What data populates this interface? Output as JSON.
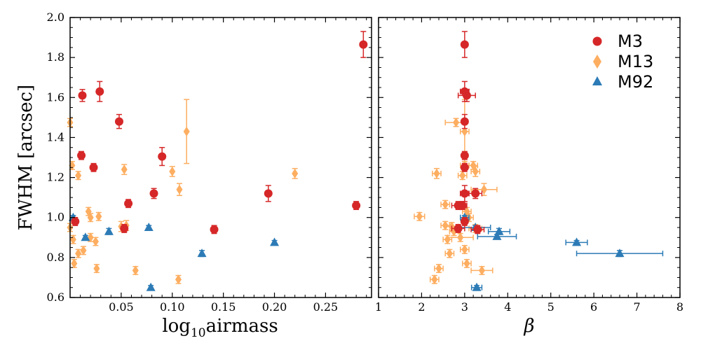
{
  "chart_data": [
    {
      "type": "scatter",
      "title": "",
      "xlabel_main": "log",
      "xlabel_sub": "10",
      "xlabel_rest": "airmass",
      "ylabel": "FWHM [arcsec]",
      "xlim": [
        0.0,
        0.295
      ],
      "ylim": [
        0.6,
        2.0
      ],
      "xticks": [
        0.05,
        0.1,
        0.15,
        0.2,
        0.25
      ],
      "xtick_labels": [
        "0.05",
        "0.10",
        "0.15",
        "0.20",
        "0.25"
      ],
      "yticks": [
        0.6,
        0.8,
        1.0,
        1.2,
        1.4,
        1.6,
        1.8,
        2.0
      ],
      "ytick_labels": [
        "0.6",
        "0.8",
        "1.0",
        "1.2",
        "1.4",
        "1.6",
        "1.8",
        "2.0"
      ],
      "series": [
        {
          "name": "M3",
          "color": "#d62728",
          "marker": "circle",
          "points": [
            {
              "x": 0.012,
              "y": 1.61,
              "yerr": 0.03
            },
            {
              "x": 0.029,
              "y": 1.63,
              "yerr": 0.05
            },
            {
              "x": 0.048,
              "y": 1.48,
              "yerr": 0.035
            },
            {
              "x": 0.011,
              "y": 1.31,
              "yerr": 0.02
            },
            {
              "x": 0.023,
              "y": 1.25,
              "yerr": 0.02
            },
            {
              "x": 0.09,
              "y": 1.305,
              "yerr": 0.045
            },
            {
              "x": 0.082,
              "y": 1.12,
              "yerr": 0.025
            },
            {
              "x": 0.057,
              "y": 1.07,
              "yerr": 0.02
            },
            {
              "x": 0.194,
              "y": 1.12,
              "yerr": 0.04
            },
            {
              "x": 0.28,
              "y": 1.06,
              "yerr": 0.02
            },
            {
              "x": 0.287,
              "y": 1.865,
              "yerr": 0.065
            },
            {
              "x": 0.005,
              "y": 0.98,
              "yerr": 0.02
            },
            {
              "x": 0.053,
              "y": 0.945,
              "yerr": 0.02
            },
            {
              "x": 0.141,
              "y": 0.94,
              "yerr": 0.02
            }
          ]
        },
        {
          "name": "M13",
          "color": "#fdae61",
          "marker": "diamond",
          "points": [
            {
              "x": 0.0,
              "y": 1.475,
              "yerr": 0.02
            },
            {
              "x": 0.002,
              "y": 1.26,
              "yerr": 0.02
            },
            {
              "x": 0.008,
              "y": 1.21,
              "yerr": 0.02
            },
            {
              "x": 0.053,
              "y": 1.24,
              "yerr": 0.025
            },
            {
              "x": 0.1,
              "y": 1.23,
              "yerr": 0.025
            },
            {
              "x": 0.107,
              "y": 1.14,
              "yerr": 0.03
            },
            {
              "x": 0.114,
              "y": 1.43,
              "yerr": 0.16
            },
            {
              "x": 0.22,
              "y": 1.22,
              "yerr": 0.025
            },
            {
              "x": 0.0,
              "y": 0.95,
              "yerr": 0.02
            },
            {
              "x": 0.003,
              "y": 0.89,
              "yerr": 0.02
            },
            {
              "x": 0.004,
              "y": 0.77,
              "yerr": 0.02
            },
            {
              "x": 0.008,
              "y": 0.82,
              "yerr": 0.02
            },
            {
              "x": 0.013,
              "y": 0.835,
              "yerr": 0.02
            },
            {
              "x": 0.018,
              "y": 1.03,
              "yerr": 0.02
            },
            {
              "x": 0.02,
              "y": 1.0,
              "yerr": 0.02
            },
            {
              "x": 0.02,
              "y": 0.9,
              "yerr": 0.02
            },
            {
              "x": 0.025,
              "y": 0.88,
              "yerr": 0.02
            },
            {
              "x": 0.028,
              "y": 1.005,
              "yerr": 0.02
            },
            {
              "x": 0.026,
              "y": 0.745,
              "yerr": 0.02
            },
            {
              "x": 0.05,
              "y": 0.955,
              "yerr": 0.025
            },
            {
              "x": 0.055,
              "y": 0.96,
              "yerr": 0.025
            },
            {
              "x": 0.064,
              "y": 0.735,
              "yerr": 0.02
            },
            {
              "x": 0.106,
              "y": 0.69,
              "yerr": 0.02
            }
          ]
        },
        {
          "name": "M92",
          "color": "#2c7bb6",
          "marker": "triangle",
          "points": [
            {
              "x": 0.003,
              "y": 1.0,
              "yerr": 0.01
            },
            {
              "x": 0.015,
              "y": 0.9,
              "yerr": 0.01
            },
            {
              "x": 0.038,
              "y": 0.93,
              "yerr": 0.015
            },
            {
              "x": 0.077,
              "y": 0.95,
              "yerr": 0.01
            },
            {
              "x": 0.079,
              "y": 0.65,
              "yerr": 0.01
            },
            {
              "x": 0.129,
              "y": 0.82,
              "yerr": 0.015
            },
            {
              "x": 0.2,
              "y": 0.875,
              "yerr": 0.01
            }
          ]
        }
      ]
    },
    {
      "type": "scatter",
      "title": "",
      "xlabel": "β",
      "ylabel": "",
      "xlim": [
        1,
        8
      ],
      "ylim": [
        0.6,
        2.0
      ],
      "xticks": [
        1,
        2,
        3,
        4,
        5,
        6,
        7,
        8
      ],
      "xtick_labels": [
        "1",
        "2",
        "3",
        "4",
        "5",
        "6",
        "7",
        "8"
      ],
      "legend": {
        "position": "top-right",
        "entries": [
          "M3",
          "M13",
          "M92"
        ]
      },
      "series": [
        {
          "name": "M3",
          "color": "#d62728",
          "marker": "circle",
          "points": [
            {
              "x": 3.0,
              "y": 1.865,
              "yerr": 0.065,
              "xerr": 0.05
            },
            {
              "x": 3.0,
              "y": 1.63,
              "yerr": 0.05,
              "xerr": 0.1
            },
            {
              "x": 3.05,
              "y": 1.61,
              "yerr": 0.03,
              "xerr": 0.2
            },
            {
              "x": 3.0,
              "y": 1.48,
              "yerr": 0.035,
              "xerr": 0.05
            },
            {
              "x": 3.0,
              "y": 1.31,
              "yerr": 0.02,
              "xerr": 0.05
            },
            {
              "x": 3.0,
              "y": 1.25,
              "yerr": 0.02,
              "xerr": 0.05
            },
            {
              "x": 3.0,
              "y": 1.12,
              "yerr": 0.04,
              "xerr": 0.1
            },
            {
              "x": 3.25,
              "y": 1.12,
              "yerr": 0.025,
              "xerr": 0.15
            },
            {
              "x": 2.85,
              "y": 1.06,
              "yerr": 0.02,
              "xerr": 0.15
            },
            {
              "x": 2.95,
              "y": 1.06,
              "yerr": 0.02,
              "xerr": 0.1
            },
            {
              "x": 3.0,
              "y": 0.98,
              "yerr": 0.02,
              "xerr": 0.05
            },
            {
              "x": 2.85,
              "y": 0.945,
              "yerr": 0.02,
              "xerr": 0.15
            },
            {
              "x": 3.3,
              "y": 0.94,
              "yerr": 0.02,
              "xerr": 0.15
            }
          ]
        },
        {
          "name": "M13",
          "color": "#fdae61",
          "marker": "diamond",
          "points": [
            {
              "x": 2.8,
              "y": 1.475,
              "yerr": 0.02,
              "xerr": 0.25
            },
            {
              "x": 3.0,
              "y": 1.43,
              "yerr": 0.16,
              "xerr": 0.1
            },
            {
              "x": 2.35,
              "y": 1.22,
              "yerr": 0.025,
              "xerr": 0.1
            },
            {
              "x": 2.95,
              "y": 1.21,
              "yerr": 0.02,
              "xerr": 0.1
            },
            {
              "x": 3.0,
              "y": 1.26,
              "yerr": 0.02,
              "xerr": 0.1
            },
            {
              "x": 3.2,
              "y": 1.26,
              "yerr": 0.02,
              "xerr": 0.1
            },
            {
              "x": 3.25,
              "y": 1.23,
              "yerr": 0.025,
              "xerr": 0.1
            },
            {
              "x": 3.45,
              "y": 1.14,
              "yerr": 0.03,
              "xerr": 0.3
            },
            {
              "x": 2.55,
              "y": 1.065,
              "yerr": 0.02,
              "xerr": 0.1
            },
            {
              "x": 3.05,
              "y": 1.03,
              "yerr": 0.02,
              "xerr": 0.1
            },
            {
              "x": 1.95,
              "y": 1.005,
              "yerr": 0.02,
              "xerr": 0.12
            },
            {
              "x": 3.1,
              "y": 1.0,
              "yerr": 0.02,
              "xerr": 0.1
            },
            {
              "x": 2.55,
              "y": 0.96,
              "yerr": 0.02,
              "xerr": 0.1
            },
            {
              "x": 2.7,
              "y": 0.955,
              "yerr": 0.02,
              "xerr": 0.15
            },
            {
              "x": 2.75,
              "y": 0.93,
              "yerr": 0.02,
              "xerr": 0.1
            },
            {
              "x": 3.25,
              "y": 0.945,
              "yerr": 0.02,
              "xerr": 0.15
            },
            {
              "x": 2.6,
              "y": 0.89,
              "yerr": 0.02,
              "xerr": 0.1
            },
            {
              "x": 2.9,
              "y": 0.9,
              "yerr": 0.02,
              "xerr": 0.3
            },
            {
              "x": 3.0,
              "y": 0.84,
              "yerr": 0.02,
              "xerr": 0.1
            },
            {
              "x": 2.65,
              "y": 0.82,
              "yerr": 0.02,
              "xerr": 0.1
            },
            {
              "x": 3.05,
              "y": 0.77,
              "yerr": 0.02,
              "xerr": 0.1
            },
            {
              "x": 2.4,
              "y": 0.745,
              "yerr": 0.02,
              "xerr": 0.1
            },
            {
              "x": 3.4,
              "y": 0.735,
              "yerr": 0.02,
              "xerr": 0.25
            },
            {
              "x": 2.3,
              "y": 0.69,
              "yerr": 0.02,
              "xerr": 0.1
            }
          ]
        },
        {
          "name": "M92",
          "color": "#2c7bb6",
          "marker": "triangle",
          "points": [
            {
              "x": 3.0,
              "y": 1.0,
              "yerr": 0.01,
              "xerr": 0.1
            },
            {
              "x": 3.25,
              "y": 0.95,
              "yerr": 0.01,
              "xerr": 0.35
            },
            {
              "x": 3.8,
              "y": 0.93,
              "yerr": 0.015,
              "xerr": 0.25
            },
            {
              "x": 3.75,
              "y": 0.905,
              "yerr": 0.01,
              "xerr": 0.45
            },
            {
              "x": 5.6,
              "y": 0.875,
              "yerr": 0.01,
              "xerr": 0.25
            },
            {
              "x": 6.6,
              "y": 0.82,
              "yerr": 0.015,
              "xerr": 1.0
            },
            {
              "x": 3.28,
              "y": 0.65,
              "yerr": 0.01,
              "xerr": 0.12
            }
          ]
        }
      ]
    }
  ]
}
